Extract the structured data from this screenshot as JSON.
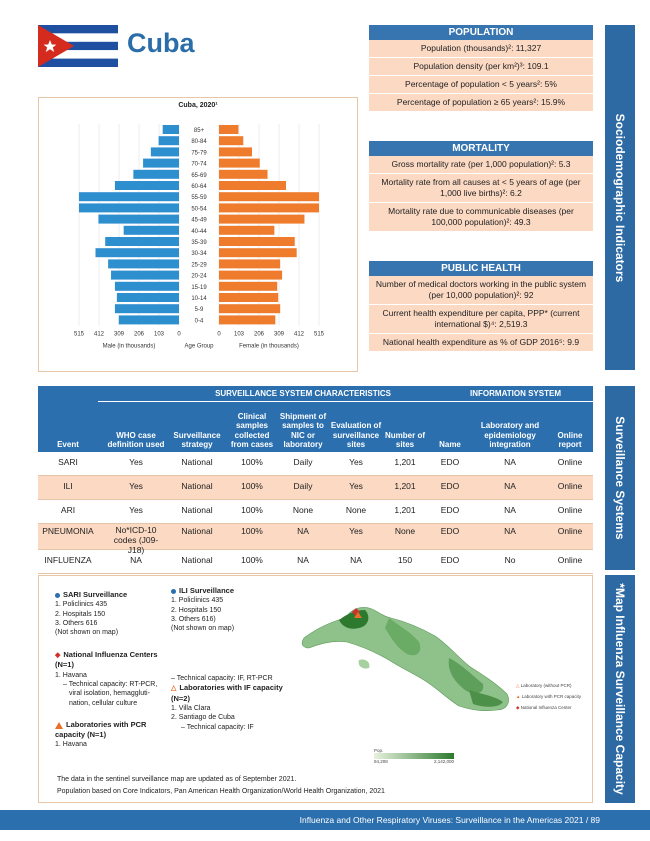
{
  "country": "Cuba",
  "pyramid": {
    "title": "Cuba, 2020¹",
    "male_label": "Male (in thousands)",
    "age_label": "Age Group",
    "female_label": "Female (in thousands)",
    "axis_ticks": [
      "515",
      "412",
      "309",
      "206",
      "103",
      "0",
      "0",
      "103",
      "206",
      "309",
      "412",
      "515"
    ],
    "age_groups": [
      "85+",
      "80-84",
      "75-79",
      "70-74",
      "65-69",
      "60-64",
      "55-59",
      "50-54",
      "45-49",
      "40-44",
      "35-39",
      "30-34",
      "25-29",
      "20-24",
      "15-19",
      "10-14",
      "5-9",
      "0-4"
    ],
    "male": [
      84,
      105,
      145,
      185,
      235,
      330,
      515,
      515,
      415,
      285,
      380,
      430,
      365,
      350,
      330,
      320,
      330,
      310
    ],
    "female": [
      100,
      125,
      170,
      210,
      250,
      345,
      515,
      515,
      440,
      285,
      390,
      400,
      315,
      325,
      300,
      305,
      315,
      290
    ]
  },
  "population": {
    "title": "POPULATION",
    "rows": [
      "Population (thousands)²: 11,327",
      "Population density (per km²)³: 109.1",
      "Percentage of population < 5 years²: 5%",
      "Percentage of population ≥ 65 years²: 15.9%"
    ]
  },
  "mortality": {
    "title": "MORTALITY",
    "rows": [
      "Gross mortality rate (per 1,000 population)²: 5.3",
      "Mortality rate from all causes at < 5 years of age (per 1,000 live births)²: 6.2",
      "Mortality rate due to communicable diseases (per 100,000 population)²: 49.3"
    ]
  },
  "public_health": {
    "title": "PUBLIC HEALTH",
    "rows": [
      "Number of medical doctors working in the public system (per 10,000 population)²: 92",
      "Current health expenditure per capita, PPP* (current international $)⁴: 2,519.3",
      "National health expenditure as % of GDP 2016⁵: 9.9"
    ]
  },
  "side_tabs": {
    "sociodemographic": "Sociodemographic Indicators",
    "surveillance": "Surveillance Systems",
    "map": "*Map Influenza Surveillance Capacity"
  },
  "surveillance": {
    "group1": "SURVEILLANCE SYSTEM CHARACTERISTICS",
    "group2": "INFORMATION SYSTEM",
    "columns": [
      "Event",
      "WHO case definition used",
      "Surveillance strategy",
      "Clinical samples collected from cases",
      "Shipment of samples to NIC or laboratory",
      "Evaluation of surveillance sites",
      "Number of sites",
      "Name",
      "Laboratory and epidemiology integration",
      "Online report"
    ],
    "rows": [
      [
        "SARI",
        "Yes",
        "National",
        "100%",
        "Daily",
        "Yes",
        "1,201",
        "EDO",
        "NA",
        "Online"
      ],
      [
        "ILI",
        "Yes",
        "National",
        "100%",
        "Daily",
        "Yes",
        "1,201",
        "EDO",
        "NA",
        "Online"
      ],
      [
        "ARI",
        "Yes",
        "National",
        "100%",
        "None",
        "None",
        "1,201",
        "EDO",
        "NA",
        "Online"
      ],
      [
        "PNEUMONIA",
        "No*ICD-10 codes (J09-J18)",
        "National",
        "100%",
        "NA",
        "Yes",
        "None",
        "EDO",
        "NA",
        "Online"
      ],
      [
        "INFLUENZA",
        "NA",
        "National",
        "100%",
        "NA",
        "NA",
        "150",
        "EDO",
        "No",
        "Online"
      ]
    ]
  },
  "map": {
    "sari_title": "SARI Surveillance",
    "sari_items": [
      "1. Policlinics 435",
      "2. Hospitals 150",
      "3. Others 616",
      "(Not shown on map)"
    ],
    "ili_title": "ILI Surveillance",
    "ili_items": [
      "1. Policlinics 435",
      "2. Hospitals 150",
      "3. Others 616)",
      "(Not shown on map)"
    ],
    "nic_title": "National Influenza Centers (N=1)",
    "nic_items": [
      "1. Havana",
      "– Technical capacity: RT-PCR,",
      "viral isolation, hemaggluti-",
      "nation, cellular culture"
    ],
    "pcr_title": "Laboratories with PCR capacity (N=1)",
    "pcr_items": [
      "1. Havana"
    ],
    "if_pre": "– Technical capacity: IF, RT-PCR",
    "if_title": "Laboratories with IF capacity (N=2)",
    "if_items": [
      "1. Villa Clara",
      "2. Santiago de Cuba",
      "– Technical capacity: IF"
    ],
    "legend_right": [
      "Laboratory (without PCR)",
      "Laboratory with PCR capacity",
      "National Influenza Center"
    ],
    "scale_label": "Pop.",
    "scale_min": "94,208",
    "scale_max": "2,142,000",
    "note1": "The data in the sentinel surveillance map are updated as of September 2021.",
    "note2": "Population based on Core Indicators, Pan American Health Organization/World Health Organization, 2021"
  },
  "footer": "Influenza and Other Respiratory Viruses: Surveillance in the Americas 2021  /  89"
}
